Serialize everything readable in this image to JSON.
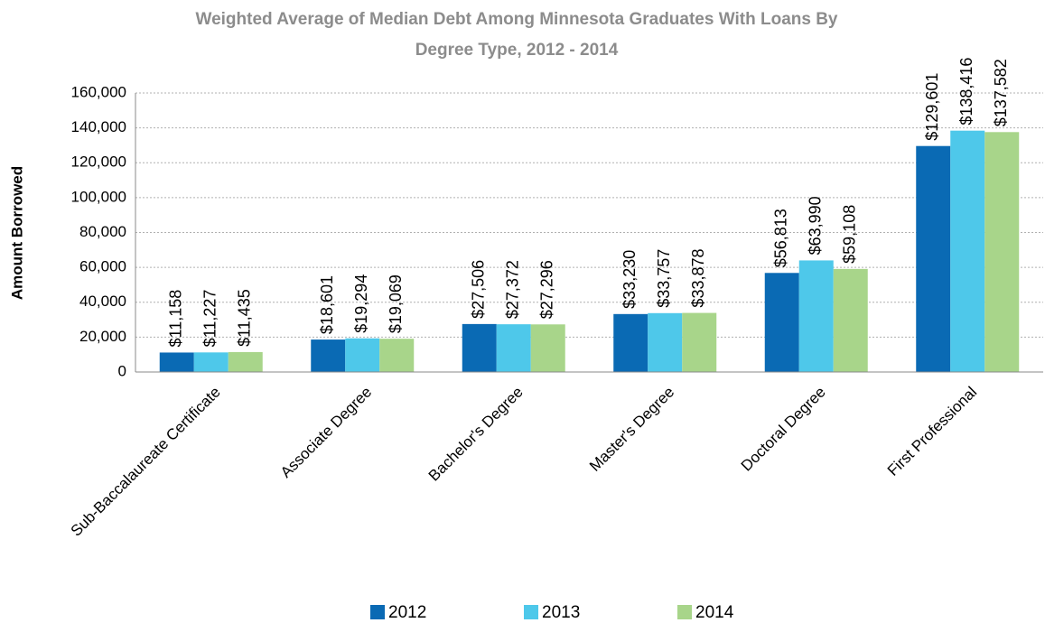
{
  "chart_data": {
    "type": "bar",
    "title": [
      "Weighted Average of Median Debt Among Minnesota Graduates With Loans By",
      "Degree Type, 2012 - 2014"
    ],
    "y_label": "Amount Borrowed",
    "categories": [
      "Sub-Baccalaureate Certificate",
      "Associate Degree",
      "Bachelor's Degree",
      "Master's Degree",
      "Doctoral Degree",
      "First Professional"
    ],
    "series": [
      {
        "name": "2012",
        "color": "#0a6ab4",
        "values": [
          11158,
          18601,
          27506,
          33230,
          56813,
          129601
        ],
        "value_labels": [
          "$11,158",
          "$18,601",
          "$27,506",
          "$33,230",
          "$56,813",
          "$129,601"
        ]
      },
      {
        "name": "2013",
        "color": "#4ec8ea",
        "values": [
          11227,
          19294,
          27372,
          33757,
          63990,
          138416
        ],
        "value_labels": [
          "$11,227",
          "$19,294",
          "$27,372",
          "$33,757",
          "$63,990",
          "$138,416"
        ]
      },
      {
        "name": "2014",
        "color": "#a8d58a",
        "values": [
          11435,
          19069,
          27296,
          33878,
          59108,
          137582
        ],
        "value_labels": [
          "$11,435",
          "$19,069",
          "$27,296",
          "$33,878",
          "$59,108",
          "$137,582"
        ]
      }
    ],
    "ylim": [
      0,
      160000
    ],
    "yticks": [
      0,
      {
        "value": 20000,
        "label": "20,000"
      },
      {
        "value": 40000,
        "label": "40,000"
      },
      {
        "value": 60000,
        "label": "60,000"
      },
      {
        "value": 80000,
        "label": "80,000"
      },
      {
        "value": 100000,
        "label": "100,000"
      },
      {
        "value": 120000,
        "label": "120,000"
      },
      {
        "value": 140000,
        "label": "140,000"
      },
      {
        "value": 160000,
        "label": "160,000"
      }
    ],
    "grid": true,
    "legend": "bottom"
  }
}
